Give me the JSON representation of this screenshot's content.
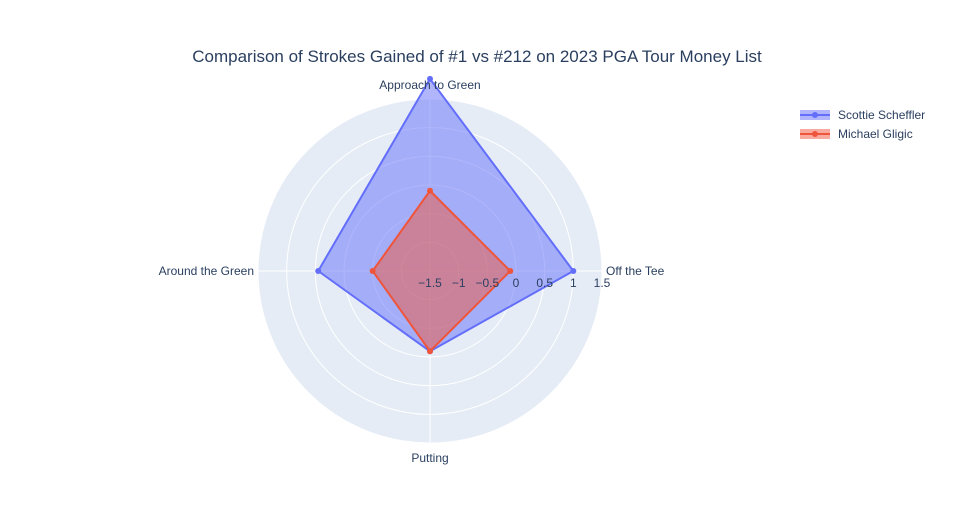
{
  "chart_data": {
    "type": "radar",
    "title": "Comparison of Strokes Gained of #1 vs #212 on 2023 PGA Tour Money List",
    "categories": [
      "Off the Tee",
      "Approach to Green",
      "Around the Green",
      "Putting"
    ],
    "radial_range": [
      -1.5,
      1.5
    ],
    "radial_ticks": [
      -1.5,
      -1,
      -0.5,
      0,
      0.5,
      1,
      1.5
    ],
    "radial_tick_labels": [
      "−1.5",
      "−1",
      "−0.5",
      "0",
      "0.5",
      "1",
      "1.5"
    ],
    "series": [
      {
        "name": "Scottie Scheffler",
        "values": [
          1.0,
          1.85,
          0.45,
          -0.1
        ],
        "color": "#636efa",
        "fill": "rgba(99,110,250,0.5)"
      },
      {
        "name": "Michael Gligic",
        "values": [
          -0.1,
          -0.1,
          -0.5,
          -0.1
        ],
        "color": "#EF553B",
        "fill": "rgba(239,85,59,0.5)"
      }
    ],
    "grid": true,
    "polar_bgcolor": "#e5ecf6",
    "legend_position": "top-right"
  }
}
